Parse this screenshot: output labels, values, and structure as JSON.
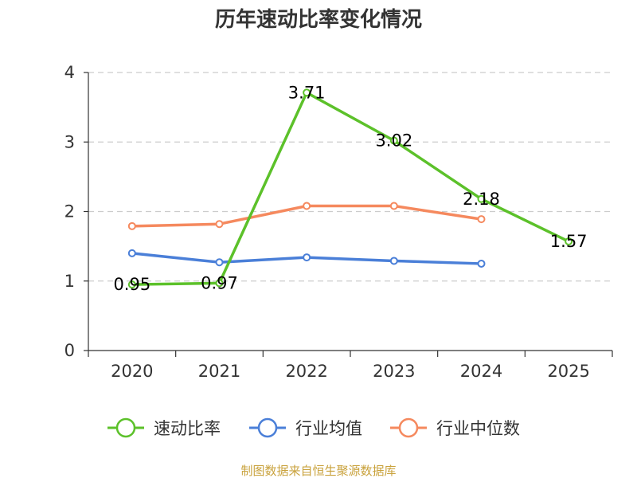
{
  "chart_data": {
    "type": "line",
    "title": "历年速动比率变化情况",
    "categories": [
      "2020",
      "2021",
      "2022",
      "2023",
      "2024",
      "2025"
    ],
    "ylim": [
      0,
      4
    ],
    "yticks": [
      "0",
      "1",
      "2",
      "3",
      "4"
    ],
    "grid": true,
    "legend_position": "bottom",
    "series": [
      {
        "name": "速动比率",
        "color": "#5cc12a",
        "values": [
          0.95,
          0.97,
          3.71,
          3.02,
          2.18,
          1.57
        ],
        "labels": [
          "0.95",
          "0.97",
          "3.71",
          "3.02",
          "2.18",
          "1.57"
        ]
      },
      {
        "name": "行业均值",
        "color": "#4a7fd8",
        "values": [
          1.4,
          1.27,
          1.34,
          1.29,
          1.25,
          null
        ]
      },
      {
        "name": "行业中位数",
        "color": "#f5895e",
        "values": [
          1.79,
          1.82,
          2.08,
          2.08,
          1.89,
          null
        ]
      }
    ]
  },
  "footer": {
    "source": "制图数据来自恒生聚源数据库"
  }
}
